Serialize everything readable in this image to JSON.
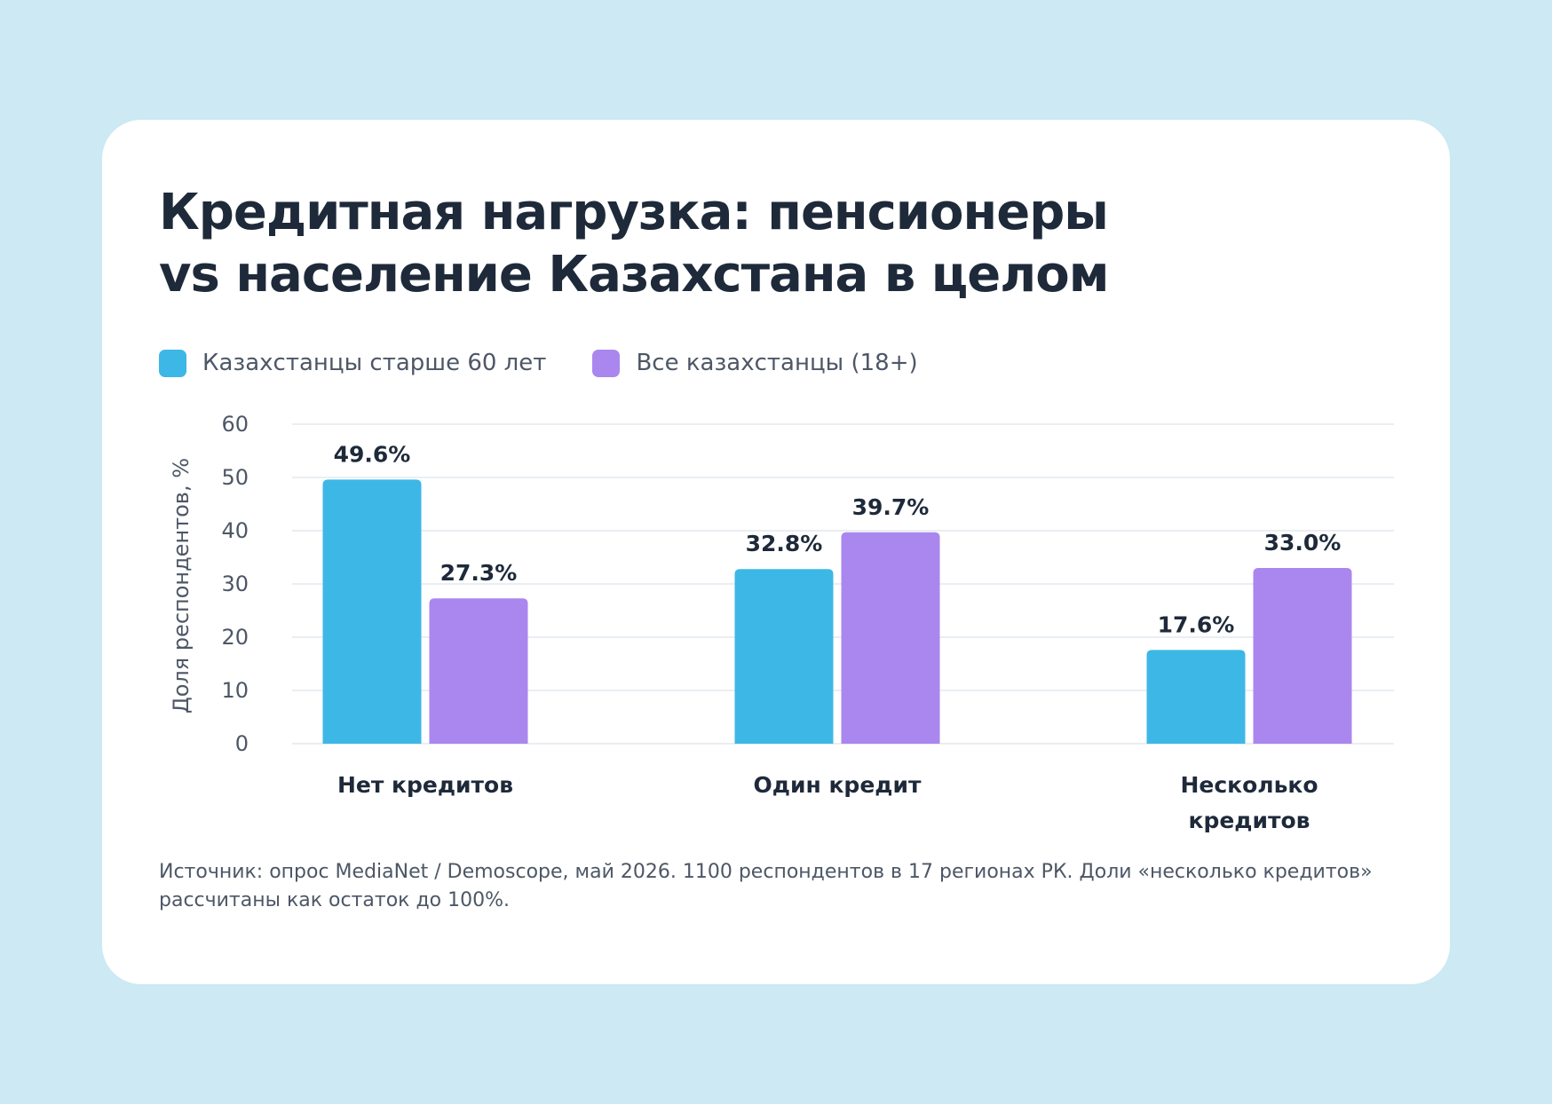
{
  "title_lines": [
    "Кредитная нагрузка: пенсионеры",
    "vs население Казахстана в целом"
  ],
  "colors": {
    "page_background": "#cde9f3",
    "card": "#ffffff",
    "title": "#1e2a3a",
    "text_muted": "#4d5766",
    "grid": "#e4e8ee",
    "series_60plus": "#3db7e6",
    "series_all": "#a987ee"
  },
  "legend": [
    {
      "label": "Казахстанцы старше 60 лет",
      "color": "#3db7e6"
    },
    {
      "label": "Все казахстанцы (18+)",
      "color": "#a987ee"
    }
  ],
  "chart_data": {
    "type": "bar",
    "title": "Кредитная нагрузка: пенсионеры vs население Казахстана в целом",
    "categories": [
      [
        "Нет кредитов"
      ],
      [
        "Один кредит"
      ],
      [
        "Несколько",
        "кредитов"
      ]
    ],
    "series": [
      {
        "name": "Казахстанцы старше 60 лет",
        "color": "#3db7e6",
        "values": [
          49.6,
          32.8,
          17.6
        ],
        "labels": [
          "49.6%",
          "32.8%",
          "17.6%"
        ]
      },
      {
        "name": "Все казахстанцы (18+)",
        "color": "#a987ee",
        "values": [
          27.3,
          39.7,
          33.0
        ],
        "labels": [
          "27.3%",
          "39.7%",
          "33.0%"
        ]
      }
    ],
    "xlabel": "",
    "ylabel": "Доля респондентов, %",
    "ylim": [
      0,
      60
    ],
    "yticks": [
      0,
      10,
      20,
      30,
      40,
      50,
      60
    ],
    "grid": true,
    "legend_position": "top-left"
  },
  "footnote_lines": [
    "Источник: опрос MediaNet / Demoscope, май 2026. 1100 респондентов в 17 регионах РК. Доли «несколько кредитов»",
    "рассчитаны как остаток до 100%."
  ]
}
